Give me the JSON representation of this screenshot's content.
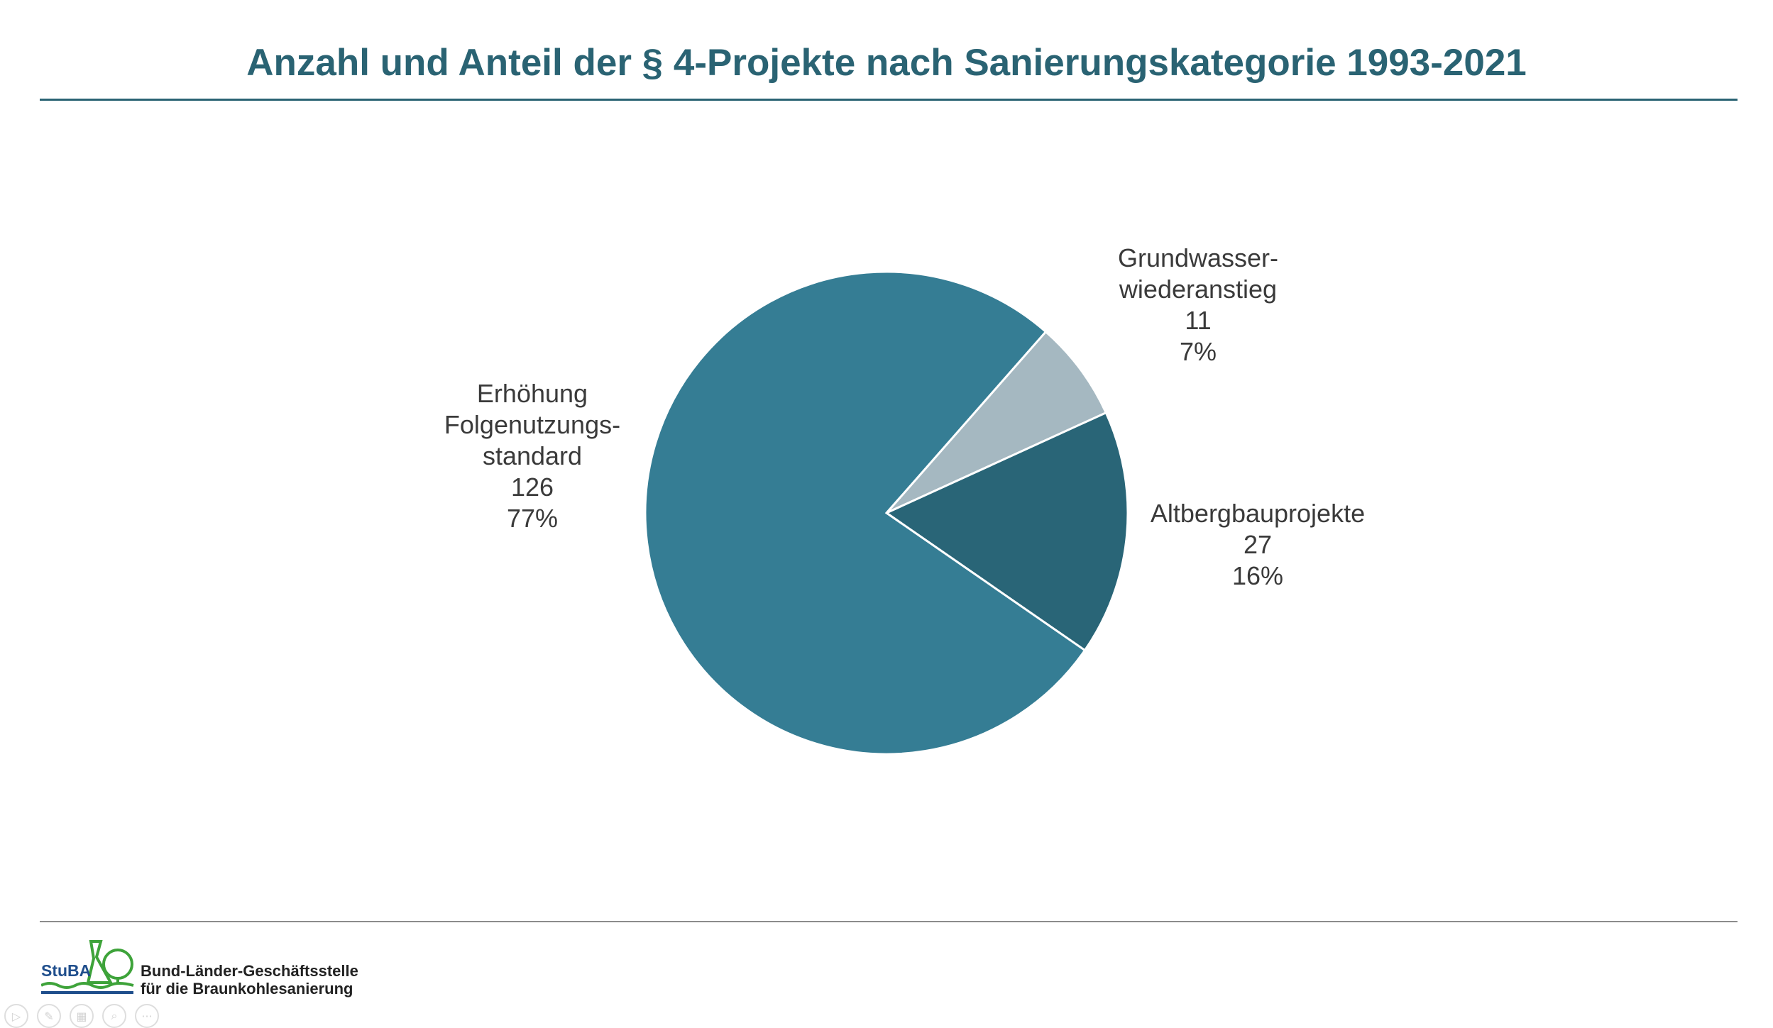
{
  "chart_data": {
    "type": "pie",
    "title": "Anzahl und Anteil der § 4-Projekte nach Sanierungskategorie 1993-2021",
    "slices": [
      {
        "label_lines": [
          "Grundwasser-",
          "wiederanstieg"
        ],
        "value": 11,
        "percent_label": "7%",
        "color": "#a5b8c1"
      },
      {
        "label_lines": [
          "Altbergbauprojekte"
        ],
        "value": 27,
        "percent_label": "16%",
        "color": "#296577"
      },
      {
        "label_lines": [
          "Erhöhung",
          "Folgenutzungs-",
          "standard"
        ],
        "value": 126,
        "percent_label": "77%",
        "color": "#357d94"
      }
    ],
    "legend": "none",
    "grid": false
  },
  "footer": {
    "logo_abbr": "StuBA",
    "org_line1": "Bund-Länder-Geschäftsstelle",
    "org_line2": "für die Braunkohlesanierung",
    "brand_colors": {
      "green": "#3ea33a",
      "blue": "#1f4e8c"
    }
  },
  "controls": [
    {
      "icon": "play-icon",
      "glyph": "▷"
    },
    {
      "icon": "pen-icon",
      "glyph": "✎"
    },
    {
      "icon": "slides-icon",
      "glyph": "▦"
    },
    {
      "icon": "zoom-icon",
      "glyph": "⌕"
    },
    {
      "icon": "more-icon",
      "glyph": "···"
    }
  ]
}
